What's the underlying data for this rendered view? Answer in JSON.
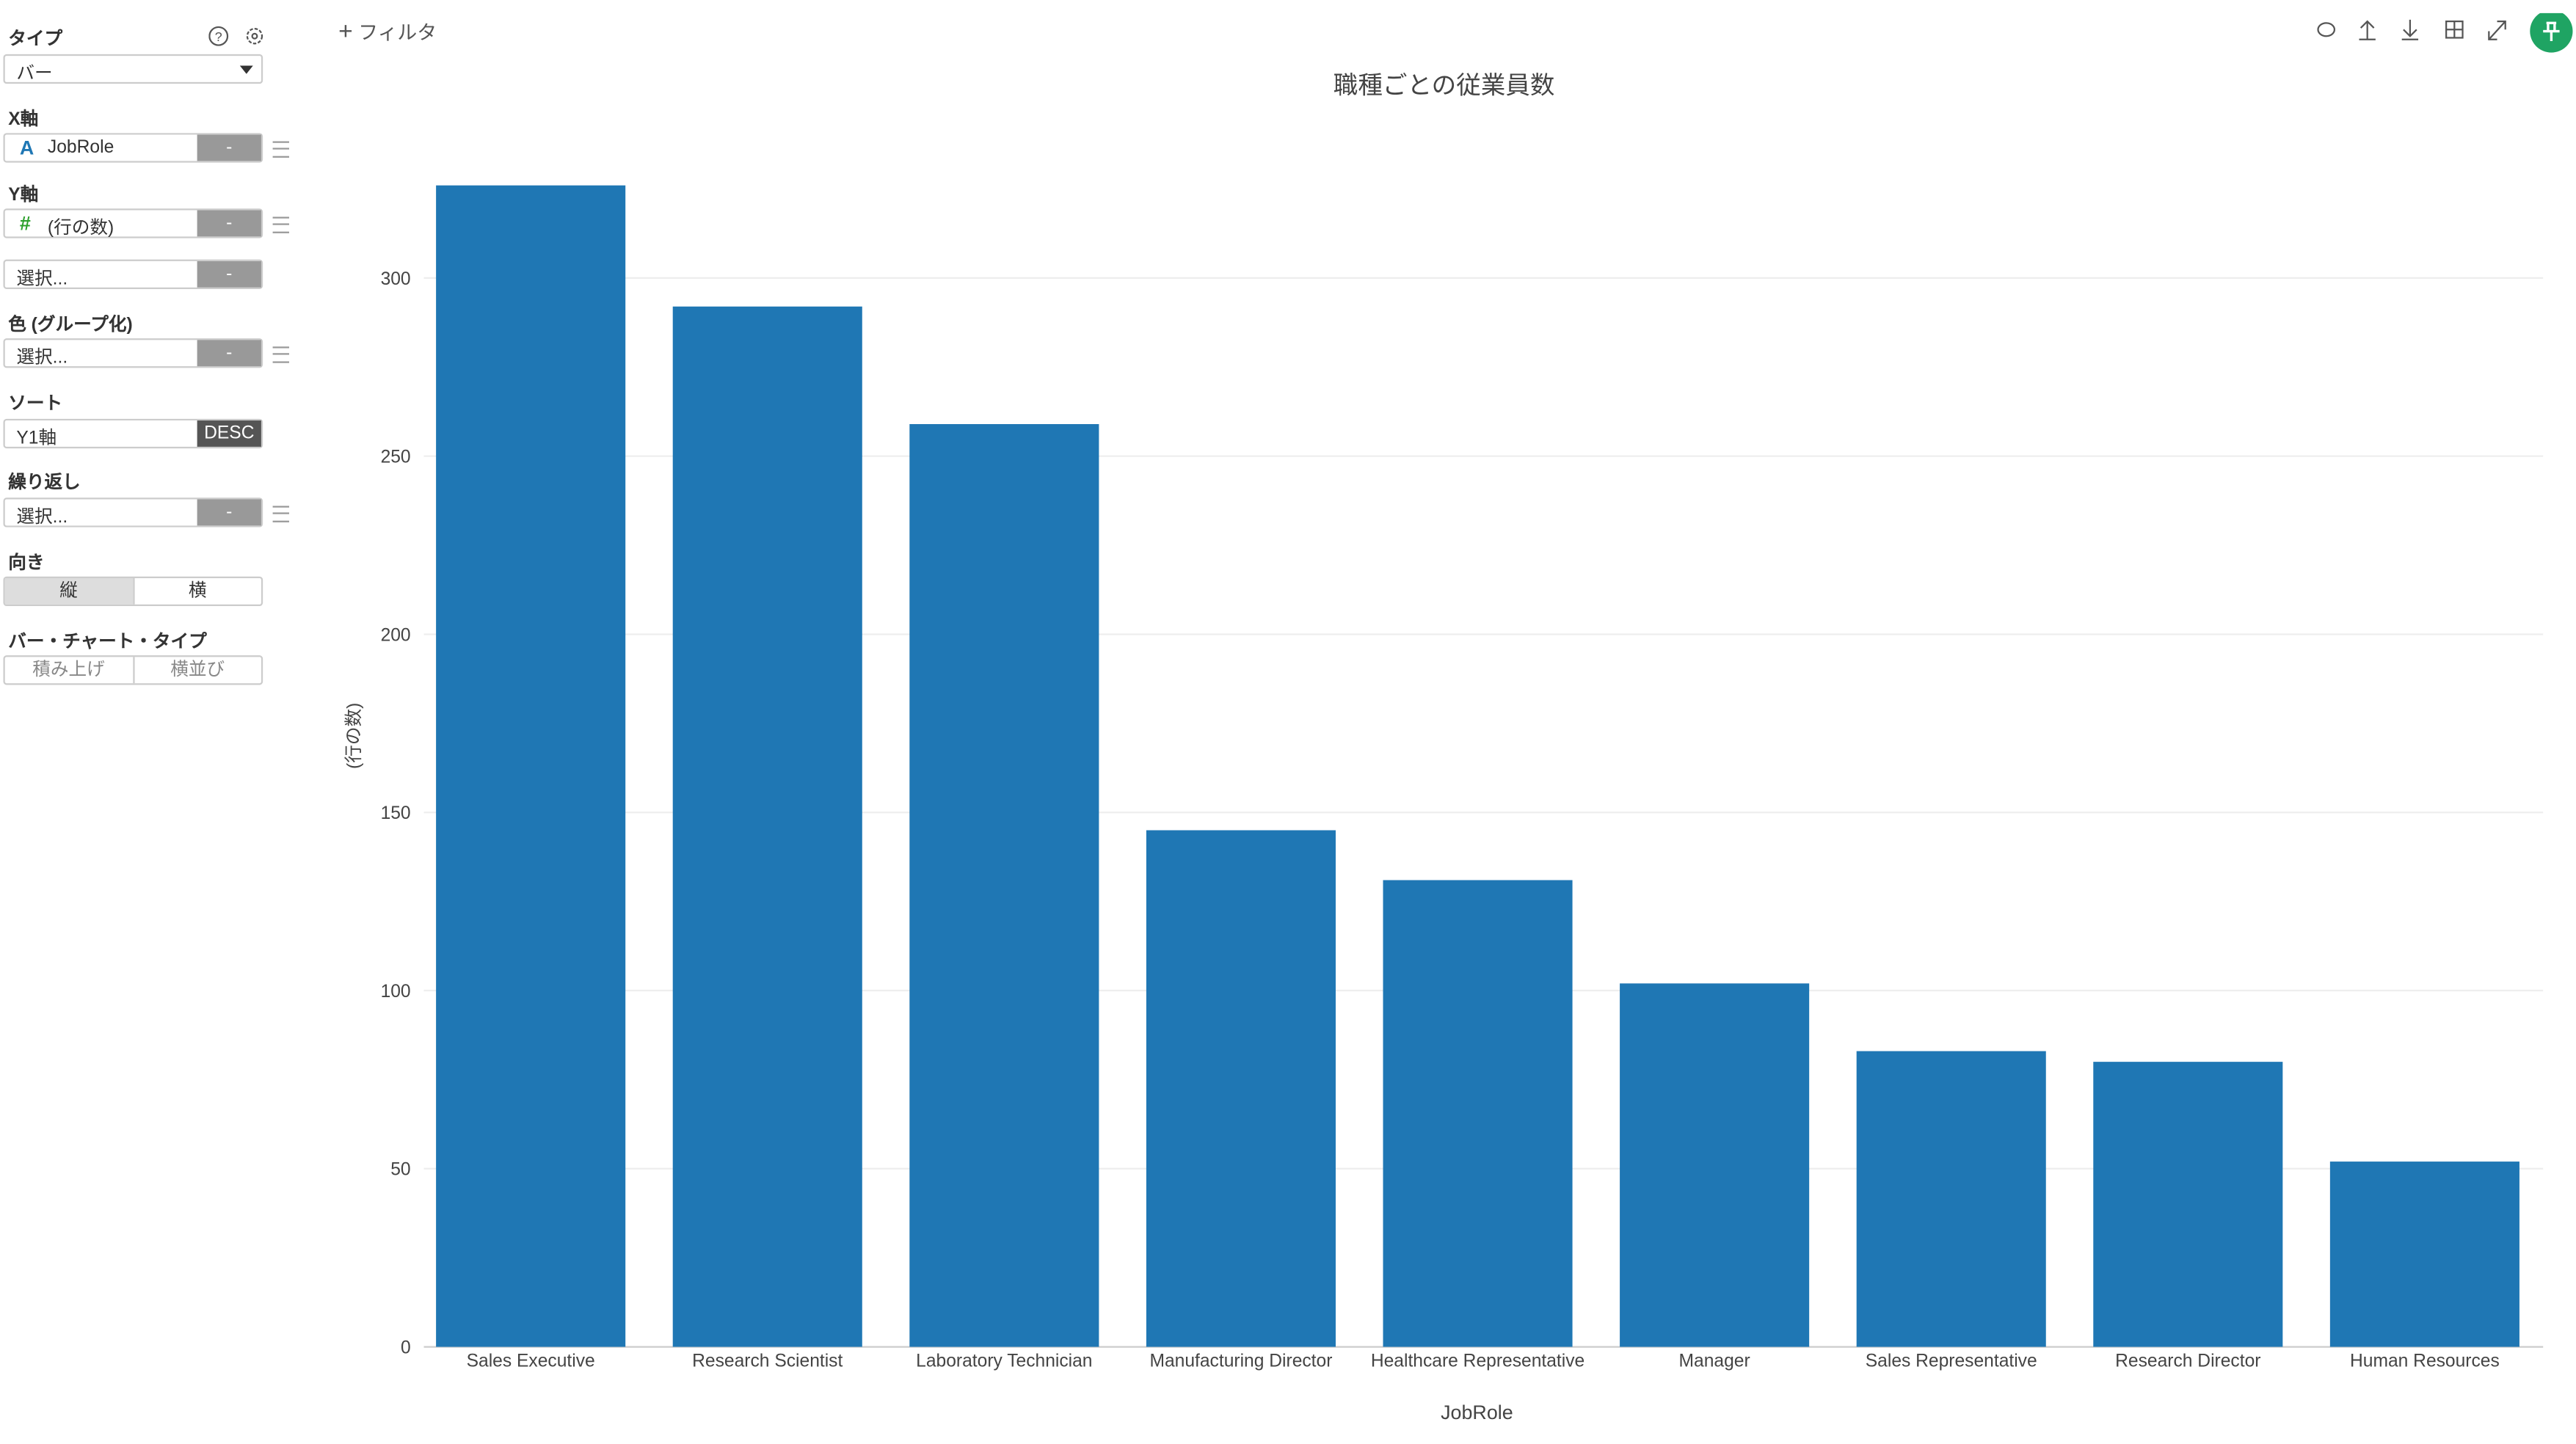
{
  "sidebar": {
    "type_label": "タイプ",
    "type_value": "バー",
    "x_axis_label": "X軸",
    "x_axis_icon": "A",
    "x_axis_value": "JobRole",
    "y_axis_label": "Y軸",
    "y_axis_icon": "#",
    "y_axis_value": "(行の数)",
    "dash_button": "-",
    "y2_placeholder": "選択...",
    "color_label": "色 (グループ化)",
    "color_value": "選択...",
    "sort_label": "ソート",
    "sort_value": "Y1軸",
    "sort_order": "DESC",
    "repeat_label": "繰り返し",
    "repeat_value": "選択...",
    "orientation_label": "向き",
    "orientation_options": [
      "縦",
      "横"
    ],
    "bar_type_label": "バー・チャート・タイプ",
    "bar_type_options": [
      "積み上げ",
      "横並び"
    ]
  },
  "toolbar": {
    "filter": "フィルタ"
  },
  "chart_data": {
    "type": "bar",
    "title": "職種ごとの従業員数",
    "x_label": "JobRole",
    "y_label": "(行の数)",
    "categories": [
      "Sales Executive",
      "Research Scientist",
      "Laboratory Technician",
      "Manufacturing Director",
      "Healthcare Representative",
      "Manager",
      "Sales Representative",
      "Research Director",
      "Human Resources"
    ],
    "values": [
      326,
      292,
      259,
      145,
      131,
      102,
      83,
      80,
      52
    ],
    "color": "#1f77b4",
    "ylim": [
      0,
      343
    ],
    "yticks": [
      0,
      50,
      100,
      150,
      200,
      250,
      300
    ],
    "grid": true
  }
}
